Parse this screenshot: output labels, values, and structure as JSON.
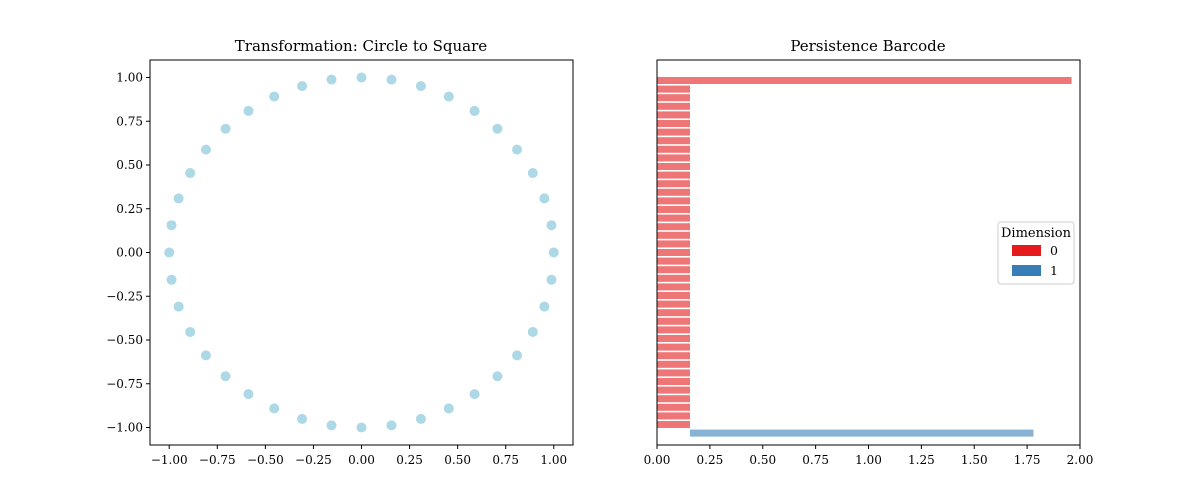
{
  "chart_data": [
    {
      "type": "scatter",
      "title": "Transformation: Circle to Square",
      "xlabel": "",
      "ylabel": "",
      "xlim": [
        -1.1,
        1.1
      ],
      "ylim": [
        -1.1,
        1.1
      ],
      "xticks": [
        "−1.00",
        "−0.75",
        "−0.50",
        "−0.25",
        "0.00",
        "0.25",
        "0.50",
        "0.75",
        "1.00"
      ],
      "yticks": [
        "1.00",
        "0.75",
        "0.50",
        "0.25",
        "0.00",
        "−0.25",
        "−0.50",
        "−0.75",
        "−1.00"
      ],
      "grid": false,
      "point_color": "#add8e6",
      "x": [
        1.0,
        0.988,
        0.951,
        0.891,
        0.809,
        0.707,
        0.588,
        0.454,
        0.309,
        0.156,
        0.0,
        -0.156,
        -0.309,
        -0.454,
        -0.588,
        -0.707,
        -0.809,
        -0.891,
        -0.951,
        -0.988,
        -1.0,
        -0.988,
        -0.951,
        -0.891,
        -0.809,
        -0.707,
        -0.588,
        -0.454,
        -0.309,
        -0.156,
        0.0,
        0.156,
        0.309,
        0.454,
        0.588,
        0.707,
        0.809,
        0.891,
        0.951,
        0.988
      ],
      "y": [
        0.0,
        0.156,
        0.309,
        0.454,
        0.588,
        0.707,
        0.809,
        0.891,
        0.951,
        0.988,
        1.0,
        0.988,
        0.951,
        0.891,
        0.809,
        0.707,
        0.588,
        0.454,
        0.309,
        0.156,
        0.0,
        -0.156,
        -0.309,
        -0.454,
        -0.588,
        -0.707,
        -0.809,
        -0.891,
        -0.951,
        -0.988,
        -1.0,
        -0.988,
        -0.951,
        -0.891,
        -0.809,
        -0.707,
        -0.588,
        -0.454,
        -0.309,
        -0.156
      ]
    },
    {
      "type": "bar",
      "orientation": "horizontal",
      "title": "Persistence Barcode",
      "xlabel": "",
      "ylabel": "",
      "xlim": [
        0.0,
        2.0
      ],
      "xticks": [
        "0.00",
        "0.25",
        "0.50",
        "0.75",
        "1.00",
        "1.25",
        "1.50",
        "1.75",
        "2.00"
      ],
      "grid": false,
      "legend": {
        "title": "Dimension",
        "placement": "center-right",
        "entries": [
          {
            "label": "0",
            "color": "#e41a1c"
          },
          {
            "label": "1",
            "color": "#377eb8"
          }
        ]
      },
      "bar_alpha": 0.6,
      "series": [
        {
          "dimension": 0,
          "color": "#e41a1c",
          "births": [
            0,
            0,
            0,
            0,
            0,
            0,
            0,
            0,
            0,
            0,
            0,
            0,
            0,
            0,
            0,
            0,
            0,
            0,
            0,
            0,
            0,
            0,
            0,
            0,
            0,
            0,
            0,
            0,
            0,
            0,
            0,
            0,
            0,
            0,
            0,
            0,
            0,
            0,
            0,
            0,
            0
          ],
          "deaths": [
            1.96,
            0.156,
            0.156,
            0.156,
            0.156,
            0.156,
            0.156,
            0.156,
            0.156,
            0.156,
            0.156,
            0.156,
            0.156,
            0.156,
            0.156,
            0.156,
            0.156,
            0.156,
            0.156,
            0.156,
            0.156,
            0.156,
            0.156,
            0.156,
            0.156,
            0.156,
            0.156,
            0.156,
            0.156,
            0.156,
            0.156,
            0.156,
            0.156,
            0.156,
            0.156,
            0.156,
            0.156,
            0.156,
            0.156,
            0.156,
            0.156
          ]
        },
        {
          "dimension": 1,
          "color": "#377eb8",
          "births": [
            0.156
          ],
          "deaths": [
            1.78
          ]
        }
      ]
    }
  ]
}
